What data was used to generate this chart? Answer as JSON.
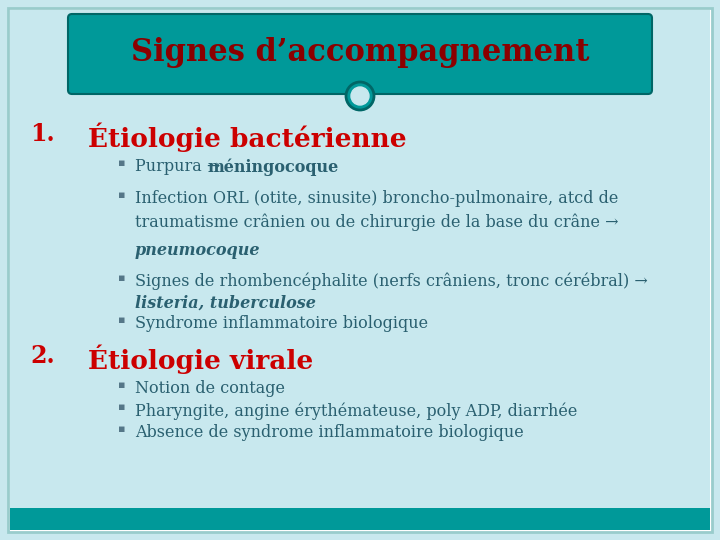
{
  "title": "Signes d’accompagnement",
  "title_color": "#8B0000",
  "slide_bg": "#C8E8EE",
  "banner_color": "#009999",
  "section_color": "#CC0000",
  "bullet_text_color": "#2A6070",
  "section1_label": "1.",
  "section1_title": "Étiologie bactérienne",
  "section2_label": "2.",
  "section2_title": "Étiologie virale",
  "bullet_char": "▪",
  "figsize": [
    7.2,
    5.4
  ],
  "dpi": 100
}
